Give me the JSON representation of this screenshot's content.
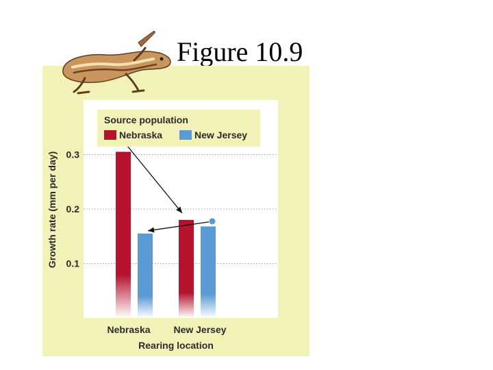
{
  "slide": {
    "title": "Figure 10.9"
  },
  "colors": {
    "panel_bg": "#f2f2b8",
    "plot_bg": "#ffffff",
    "nebraska": "#b5122e",
    "new_jersey": "#5b9bd5",
    "legend_bg": "#f2f2b8"
  },
  "icons": {
    "lizard": "lizard-illustration"
  },
  "chart_data": {
    "type": "bar",
    "title": "",
    "xlabel": "Rearing location",
    "ylabel": "Growth rate (mm per day)",
    "ylim": [
      0.0,
      0.4
    ],
    "yticks": [
      "0.1",
      "0.2",
      "0.3"
    ],
    "ytick_values": [
      0.1,
      0.2,
      0.3
    ],
    "grid": "horizontal dotted",
    "categories": [
      "Nebraska",
      "New Jersey"
    ],
    "legend": {
      "title": "Source population",
      "placement": "top"
    },
    "series": [
      {
        "name": "Nebraska",
        "values": [
          0.305,
          0.18
        ]
      },
      {
        "name": "New Jersey",
        "values": [
          0.155,
          0.168
        ]
      }
    ],
    "reference_points": [
      {
        "series": "Nebraska",
        "category": "Nebraska",
        "value": 0.325,
        "arrow_to": {
          "category": "New Jersey",
          "value": 0.195
        }
      },
      {
        "series": "New Jersey",
        "category": "New Jersey",
        "value": 0.18,
        "arrow_to": {
          "category": "Nebraska",
          "value": 0.165
        }
      }
    ]
  }
}
